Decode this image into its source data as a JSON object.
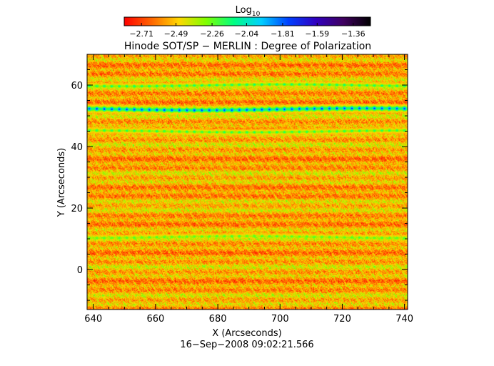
{
  "chart_data": {
    "type": "heatmap",
    "title": "Hinode SOT/SP − MERLIN : Degree of Polarization",
    "xlabel": "X (Arcseconds)",
    "ylabel": "Y (Arcseconds)",
    "footer": "16−Sep−2008 09:02:21.566",
    "xlim": [
      638,
      741
    ],
    "ylim": [
      -13,
      70
    ],
    "x_ticks": [
      640,
      660,
      680,
      700,
      720,
      740
    ],
    "y_ticks": [
      0,
      20,
      40,
      60
    ],
    "colorbar": {
      "title_base": "Log",
      "title_sub": "10",
      "ticks": [
        -2.71,
        -2.49,
        -2.26,
        -2.04,
        -1.81,
        -1.59,
        -1.36
      ],
      "tick_labels": [
        "−2.71",
        "−2.49",
        "−2.26",
        "−2.04",
        "−1.81",
        "−1.59",
        "−1.36"
      ],
      "range": [
        -2.82,
        -1.25
      ],
      "colormap": [
        "#ff0000",
        "#ff6600",
        "#ffd700",
        "#7fff00",
        "#00ff80",
        "#00d0ff",
        "#0040ff",
        "#3000c0",
        "#400060",
        "#000000"
      ]
    },
    "features": [
      {
        "y": 52.2,
        "value": -1.75,
        "description_color": "blue band"
      },
      {
        "y": 60.0,
        "value": -2.1,
        "description_color": "green band"
      },
      {
        "y": 45.0,
        "value": -2.15,
        "description_color": "green band"
      },
      {
        "y": 10.5,
        "value": -2.2,
        "description_color": "green band"
      }
    ]
  }
}
